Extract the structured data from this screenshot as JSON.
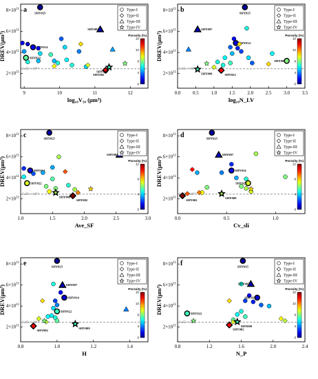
{
  "figure": {
    "shared": {
      "ylabel": "DREV(μm³)",
      "y_ticks": [
        {
          "m": "2",
          "e": "11"
        },
        {
          "m": "4",
          "e": "11"
        },
        {
          "m": "6",
          "e": "11"
        },
        {
          "m": "8",
          "e": "11"
        }
      ],
      "reference_label": "2.45 × 10¹¹",
      "legend": [
        "Type-I",
        "Type-II",
        "Type-III",
        "Type-IV"
      ],
      "colorbar_title": "Porosity (%)",
      "colorbar_ticks": [
        "0",
        "4",
        "8",
        "12",
        "16"
      ]
    }
  },
  "chart_data": [
    {
      "type": "scatter",
      "panel": "a",
      "xlabel": "log₁₀V₅₀ (μm³)",
      "xlim": [
        8.9,
        12.5
      ],
      "x_ticks": [
        "9",
        "10",
        "11",
        "12"
      ],
      "ylim": [
        0.6,
        8.6
      ],
      "y_unit": "×10¹¹ μm³",
      "reference_y": 2.45,
      "colorbar_max": 16,
      "points": [
        {
          "x": 9.45,
          "y": 8.3,
          "t": 1,
          "p": 0.5,
          "label": "SHY025"
        },
        {
          "x": 8.95,
          "y": 4.9,
          "t": 1,
          "p": 1.5
        },
        {
          "x": 9.1,
          "y": 4.8,
          "t": 1,
          "p": 1.0
        },
        {
          "x": 9.25,
          "y": 4.5,
          "t": 1,
          "p": 2.0,
          "label": "SHY014"
        },
        {
          "x": 9.0,
          "y": 4.1,
          "t": 1,
          "p": 4.5
        },
        {
          "x": 9.4,
          "y": 4.4,
          "t": 1,
          "p": 1.5
        },
        {
          "x": 9.45,
          "y": 3.9,
          "t": 1,
          "p": 5.5
        },
        {
          "x": 9.05,
          "y": 3.5,
          "t": 1,
          "p": 7.5,
          "label": "SHY022"
        },
        {
          "x": 9.1,
          "y": 3.1,
          "t": 1,
          "p": 6.5
        },
        {
          "x": 9.75,
          "y": 3.8,
          "t": 1,
          "p": 7.0
        },
        {
          "x": 9.85,
          "y": 3.2,
          "t": 1,
          "p": 5.0
        },
        {
          "x": 10.05,
          "y": 5.3,
          "t": 1,
          "p": 3.5
        },
        {
          "x": 10.15,
          "y": 4.5,
          "t": 1,
          "p": 5.5
        },
        {
          "x": 10.2,
          "y": 3.3,
          "t": 1,
          "p": 6.0
        },
        {
          "x": 10.35,
          "y": 2.8,
          "t": 1,
          "p": 6.5
        },
        {
          "x": 10.55,
          "y": 4.1,
          "t": 1,
          "p": 4.0
        },
        {
          "x": 10.75,
          "y": 2.65,
          "t": 1,
          "p": 5.5
        },
        {
          "x": 9.4,
          "y": 3.2,
          "t": 1,
          "p": 5.0
        },
        {
          "x": 9.95,
          "y": 3.0,
          "t": 1,
          "p": 6.5
        },
        {
          "x": 10.6,
          "y": 4.8,
          "t": 2,
          "p": 10.5
        },
        {
          "x": 9.85,
          "y": 2.7,
          "t": 2,
          "p": 10.0
        },
        {
          "x": 10.8,
          "y": 2.8,
          "t": 2,
          "p": 9.5
        },
        {
          "x": 11.3,
          "y": 2.3,
          "t": 2,
          "p": 14.0,
          "label": "SHY002"
        },
        {
          "x": 11.15,
          "y": 6.2,
          "t": 3,
          "p": 1.0,
          "label": "SHY007"
        },
        {
          "x": 11.5,
          "y": 4.3,
          "t": 3,
          "p": 4.5
        },
        {
          "x": 11.4,
          "y": 2.6,
          "t": 4,
          "p": 7.0,
          "label": "SHY009"
        },
        {
          "x": 11.85,
          "y": 2.95,
          "t": 4,
          "p": 8.0
        }
      ]
    },
    {
      "type": "scatter",
      "panel": "b",
      "xlabel": "log₁₀N_LV",
      "xlim": [
        0,
        3.5
      ],
      "x_ticks": [
        "0.0",
        "0.5",
        "1.0",
        "1.5",
        "2.0",
        "2.5",
        "3.0",
        "3.5"
      ],
      "ylim": [
        0.6,
        8.6
      ],
      "y_unit": "×10¹¹ μm³",
      "reference_y": 2.45,
      "colorbar_max": 16,
      "points": [
        {
          "x": 1.85,
          "y": 8.3,
          "t": 1,
          "p": 0.5,
          "label": "SHY025"
        },
        {
          "x": 1.55,
          "y": 5.3,
          "t": 1,
          "p": 2.0
        },
        {
          "x": 1.6,
          "y": 4.9,
          "t": 1,
          "p": 1.5,
          "label": "SHY014"
        },
        {
          "x": 1.45,
          "y": 4.5,
          "t": 1,
          "p": 3.5
        },
        {
          "x": 1.65,
          "y": 4.4,
          "t": 1,
          "p": 2.5
        },
        {
          "x": 1.75,
          "y": 4.1,
          "t": 1,
          "p": 3.0
        },
        {
          "x": 1.5,
          "y": 3.9,
          "t": 1,
          "p": 5.0
        },
        {
          "x": 1.3,
          "y": 3.5,
          "t": 1,
          "p": 6.0
        },
        {
          "x": 1.95,
          "y": 3.5,
          "t": 1,
          "p": 5.5
        },
        {
          "x": 1.25,
          "y": 2.8,
          "t": 1,
          "p": 6.5
        },
        {
          "x": 1.45,
          "y": 3.0,
          "t": 1,
          "p": 7.0
        },
        {
          "x": 1.9,
          "y": 6.3,
          "t": 1,
          "p": 6.5
        },
        {
          "x": 2.05,
          "y": 3.0,
          "t": 1,
          "p": 3.5
        },
        {
          "x": 2.6,
          "y": 3.9,
          "t": 1,
          "p": 6.0
        },
        {
          "x": 1.1,
          "y": 3.1,
          "t": 1,
          "p": 6.5
        },
        {
          "x": 3.0,
          "y": 3.2,
          "t": 1,
          "p": 8.0,
          "label": "SHY002"
        },
        {
          "x": 1.7,
          "y": 4.8,
          "t": 2,
          "p": 10.5
        },
        {
          "x": 2.5,
          "y": 2.9,
          "t": 2,
          "p": 10.5
        },
        {
          "x": 1.0,
          "y": 2.6,
          "t": 2,
          "p": 9.5
        },
        {
          "x": 1.2,
          "y": 2.3,
          "t": 2,
          "p": 14.0,
          "label": "SHY022"
        },
        {
          "x": 0.55,
          "y": 6.2,
          "t": 3,
          "p": 1.0,
          "label": "SHY007"
        },
        {
          "x": 0.3,
          "y": 4.3,
          "t": 3,
          "p": 4.0
        },
        {
          "x": 0.55,
          "y": 2.4,
          "t": 4,
          "p": 7.0,
          "label": "SHY009"
        },
        {
          "x": 0.8,
          "y": 2.95,
          "t": 4,
          "p": 8.0
        }
      ]
    },
    {
      "type": "scatter",
      "panel": "c",
      "xlabel": "Ave_SF",
      "xlim": [
        1.0,
        3.0
      ],
      "x_ticks": [
        "1.0",
        "1.5",
        "2.0",
        "2.5",
        "3.0"
      ],
      "ylim": [
        0.6,
        8.6
      ],
      "y_unit": "×10¹¹ μm³",
      "reference_y": 2.45,
      "colorbar_max": 12,
      "points": [
        {
          "x": 1.45,
          "y": 8.3,
          "t": 1,
          "p": 0.5,
          "label": "SHY025"
        },
        {
          "x": 1.05,
          "y": 4.9,
          "t": 1,
          "p": 2.0
        },
        {
          "x": 1.15,
          "y": 4.7,
          "t": 1,
          "p": 1.5,
          "label": "SHY014"
        },
        {
          "x": 1.2,
          "y": 4.4,
          "t": 1,
          "p": 2.5
        },
        {
          "x": 1.35,
          "y": 4.5,
          "t": 1,
          "p": 3.5
        },
        {
          "x": 1.05,
          "y": 4.1,
          "t": 1,
          "p": 4.5
        },
        {
          "x": 1.5,
          "y": 3.9,
          "t": 1,
          "p": 5.5
        },
        {
          "x": 1.1,
          "y": 3.5,
          "t": 1,
          "p": 7.0,
          "label": "SHY022"
        },
        {
          "x": 1.4,
          "y": 3.2,
          "t": 1,
          "p": 6.0
        },
        {
          "x": 1.55,
          "y": 3.0,
          "t": 1,
          "p": 6.0
        },
        {
          "x": 1.6,
          "y": 6.0,
          "t": 1,
          "p": 6.5
        },
        {
          "x": 1.5,
          "y": 5.0,
          "t": 1,
          "p": 3.5
        },
        {
          "x": 1.75,
          "y": 3.3,
          "t": 1,
          "p": 5.0
        },
        {
          "x": 1.45,
          "y": 2.7,
          "t": 1,
          "p": 7.5
        },
        {
          "x": 1.85,
          "y": 2.9,
          "t": 1,
          "p": 6.5
        },
        {
          "x": 1.7,
          "y": 4.6,
          "t": 2,
          "p": 9.5
        },
        {
          "x": 1.9,
          "y": 2.6,
          "t": 2,
          "p": 9.0
        },
        {
          "x": 1.82,
          "y": 2.3,
          "t": 2,
          "p": 12.0,
          "label": "SHY002"
        },
        {
          "x": 2.55,
          "y": 6.2,
          "t": 3,
          "p": 1.0,
          "label": "SHY007"
        },
        {
          "x": 1.55,
          "y": 2.6,
          "t": 4,
          "p": 6.5,
          "label": "SHY009"
        },
        {
          "x": 2.1,
          "y": 2.95,
          "t": 4,
          "p": 8.0
        }
      ]
    },
    {
      "type": "scatter",
      "panel": "d",
      "xlabel": "Cv_sli",
      "xlim": [
        0.0,
        1.3
      ],
      "x_ticks": [
        "0.0",
        "0.5",
        "1.0"
      ],
      "ylim": [
        0.6,
        8.6
      ],
      "y_unit": "×10¹¹ μm³",
      "reference_y": 2.45,
      "colorbar_max": 12,
      "points": [
        {
          "x": 0.35,
          "y": 8.3,
          "t": 1,
          "p": 0.5,
          "label": "SHY025"
        },
        {
          "x": 0.55,
          "y": 5.3,
          "t": 1,
          "p": 2.0
        },
        {
          "x": 0.55,
          "y": 4.7,
          "t": 1,
          "p": 1.5,
          "label": "SHY014"
        },
        {
          "x": 0.45,
          "y": 4.5,
          "t": 1,
          "p": 3.0
        },
        {
          "x": 0.6,
          "y": 4.0,
          "t": 1,
          "p": 3.5
        },
        {
          "x": 0.7,
          "y": 3.9,
          "t": 1,
          "p": 5.0
        },
        {
          "x": 0.72,
          "y": 3.5,
          "t": 1,
          "p": 7.0,
          "label": "SHY022"
        },
        {
          "x": 0.65,
          "y": 3.2,
          "t": 1,
          "p": 6.0
        },
        {
          "x": 0.7,
          "y": 3.0,
          "t": 1,
          "p": 6.5
        },
        {
          "x": 0.75,
          "y": 2.7,
          "t": 1,
          "p": 7.0
        },
        {
          "x": 0.3,
          "y": 3.1,
          "t": 1,
          "p": 6.0
        },
        {
          "x": 0.2,
          "y": 4.5,
          "t": 1,
          "p": 3.5
        },
        {
          "x": 0.8,
          "y": 6.3,
          "t": 1,
          "p": 6.5
        },
        {
          "x": 1.1,
          "y": 4.1,
          "t": 1,
          "p": 6.0
        },
        {
          "x": 0.25,
          "y": 2.6,
          "t": 1,
          "p": 7.5
        },
        {
          "x": 0.15,
          "y": 4.8,
          "t": 2,
          "p": 10.5
        },
        {
          "x": 0.1,
          "y": 2.5,
          "t": 2,
          "p": 9.5
        },
        {
          "x": 0.05,
          "y": 2.3,
          "t": 2,
          "p": 12.0,
          "label": "SHY002"
        },
        {
          "x": 0.22,
          "y": 2.6,
          "t": 2,
          "p": 9.0
        },
        {
          "x": 0.42,
          "y": 6.2,
          "t": 3,
          "p": 1.0,
          "label": "SHY007"
        },
        {
          "x": 0.45,
          "y": 2.5,
          "t": 4,
          "p": 6.5,
          "label": "SHY009"
        },
        {
          "x": 0.75,
          "y": 2.95,
          "t": 4,
          "p": 8.0
        }
      ]
    },
    {
      "type": "scatter",
      "panel": "e",
      "xlabel": "H",
      "xlim": [
        0.8,
        1.5
      ],
      "x_ticks": [
        "0.8",
        "1.0",
        "1.2",
        "1.4"
      ],
      "ylim": [
        0.6,
        8.6
      ],
      "y_unit": "×10¹¹ μm³",
      "reference_y": 2.45,
      "colorbar_max": 16,
      "points": [
        {
          "x": 1.0,
          "y": 8.3,
          "t": 1,
          "p": 0.5,
          "label": "SHY025"
        },
        {
          "x": 1.02,
          "y": 5.3,
          "t": 1,
          "p": 2.0
        },
        {
          "x": 1.04,
          "y": 4.8,
          "t": 1,
          "p": 1.5,
          "label": "SHY014"
        },
        {
          "x": 0.99,
          "y": 4.5,
          "t": 1,
          "p": 3.0
        },
        {
          "x": 1.0,
          "y": 4.1,
          "t": 1,
          "p": 4.0
        },
        {
          "x": 0.98,
          "y": 3.8,
          "t": 1,
          "p": 5.5
        },
        {
          "x": 1.0,
          "y": 3.5,
          "t": 1,
          "p": 7.0,
          "label": "SHY022"
        },
        {
          "x": 0.97,
          "y": 3.1,
          "t": 1,
          "p": 6.0
        },
        {
          "x": 0.99,
          "y": 2.9,
          "t": 1,
          "p": 6.5
        },
        {
          "x": 1.0,
          "y": 2.6,
          "t": 1,
          "p": 7.5
        },
        {
          "x": 0.98,
          "y": 6.1,
          "t": 1,
          "p": 6.5
        },
        {
          "x": 0.95,
          "y": 3.0,
          "t": 1,
          "p": 6.0
        },
        {
          "x": 0.92,
          "y": 4.5,
          "t": 2,
          "p": 10.5
        },
        {
          "x": 0.9,
          "y": 2.8,
          "t": 2,
          "p": 9.5
        },
        {
          "x": 0.94,
          "y": 2.5,
          "t": 2,
          "p": 9.0
        },
        {
          "x": 0.87,
          "y": 2.1,
          "t": 2,
          "p": 14.0,
          "label": "SHY002"
        },
        {
          "x": 1.03,
          "y": 6.0,
          "t": 3,
          "p": 1.0,
          "label": "SHY007"
        },
        {
          "x": 1.38,
          "y": 3.7,
          "t": 3,
          "p": 4.0
        },
        {
          "x": 1.1,
          "y": 2.3,
          "t": 4,
          "p": 7.0,
          "label": "SHY009"
        },
        {
          "x": 0.93,
          "y": 2.6,
          "t": 4,
          "p": 8.0
        }
      ]
    },
    {
      "type": "scatter",
      "panel": "f",
      "xlabel": "N_P",
      "xlim": [
        0.8,
        2.4
      ],
      "x_ticks": [
        "0.8",
        "1.2",
        "1.6",
        "2.0",
        "2.4"
      ],
      "ylim": [
        0.6,
        8.6
      ],
      "y_unit": "×10¹¹ μm³",
      "reference_y": 2.45,
      "colorbar_max": 16,
      "points": [
        {
          "x": 1.62,
          "y": 8.3,
          "t": 1,
          "p": 0.5,
          "label": "SHY025"
        },
        {
          "x": 1.7,
          "y": 5.0,
          "t": 1,
          "p": 2.0
        },
        {
          "x": 1.8,
          "y": 4.8,
          "t": 1,
          "p": 1.5,
          "label": "SHY014"
        },
        {
          "x": 1.65,
          "y": 4.5,
          "t": 1,
          "p": 3.0
        },
        {
          "x": 1.75,
          "y": 4.4,
          "t": 1,
          "p": 2.5
        },
        {
          "x": 1.85,
          "y": 4.1,
          "t": 1,
          "p": 3.5
        },
        {
          "x": 1.95,
          "y": 4.0,
          "t": 1,
          "p": 5.0
        },
        {
          "x": 1.6,
          "y": 3.5,
          "t": 1,
          "p": 6.5
        },
        {
          "x": 1.55,
          "y": 3.2,
          "t": 1,
          "p": 6.0
        },
        {
          "x": 1.65,
          "y": 3.0,
          "t": 1,
          "p": 7.0
        },
        {
          "x": 1.6,
          "y": 6.1,
          "t": 1,
          "p": 6.5
        },
        {
          "x": 0.92,
          "y": 3.3,
          "t": 1,
          "p": 7.0,
          "label": "SHY022"
        },
        {
          "x": 1.5,
          "y": 2.7,
          "t": 1,
          "p": 7.5
        },
        {
          "x": 1.45,
          "y": 4.5,
          "t": 2,
          "p": 10.5
        },
        {
          "x": 1.5,
          "y": 2.5,
          "t": 2,
          "p": 9.5
        },
        {
          "x": 1.45,
          "y": 2.2,
          "t": 2,
          "p": 14.0,
          "label": "SHY002"
        },
        {
          "x": 2.1,
          "y": 2.8,
          "t": 2,
          "p": 10.0
        },
        {
          "x": 2.15,
          "y": 2.6,
          "t": 2,
          "p": 9.0
        },
        {
          "x": 1.72,
          "y": 6.1,
          "t": 3,
          "p": 1.0,
          "label": "SHY007"
        },
        {
          "x": 1.55,
          "y": 2.5,
          "t": 4,
          "p": 7.0,
          "label": "SHY009"
        },
        {
          "x": 1.0,
          "y": 2.6,
          "t": 4,
          "p": 8.0
        }
      ]
    }
  ]
}
